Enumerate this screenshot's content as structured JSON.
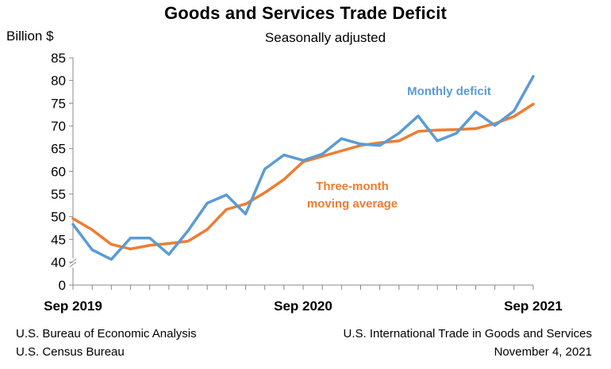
{
  "chart_data": {
    "type": "line",
    "title": "Goods and Services Trade Deficit",
    "subtitle": "Seasonally adjusted",
    "ylabel": "Billion $",
    "ylim": [
      40,
      85
    ],
    "y_ticks": [
      "85",
      "80",
      "75",
      "70",
      "65",
      "60",
      "55",
      "50",
      "45",
      "40",
      "0"
    ],
    "y_axis_break": true,
    "x_tick_labels": [
      "Sep 2019",
      "Sep 2020",
      "Sep 2021"
    ],
    "x": [
      "Sep 2019",
      "Oct 2019",
      "Nov 2019",
      "Dec 2019",
      "Jan 2020",
      "Feb 2020",
      "Mar 2020",
      "Apr 2020",
      "May 2020",
      "Jun 2020",
      "Jul 2020",
      "Aug 2020",
      "Sep 2020",
      "Oct 2020",
      "Nov 2020",
      "Dec 2020",
      "Jan 2021",
      "Feb 2021",
      "Mar 2021",
      "Apr 2021",
      "May 2021",
      "Jun 2021",
      "Jul 2021",
      "Aug 2021",
      "Sep 2021"
    ],
    "grid": false,
    "series": [
      {
        "name": "Monthly deficit",
        "color": "#5b9bd5",
        "values": [
          48.3,
          42.7,
          40.6,
          45.3,
          45.3,
          41.7,
          46.9,
          53.0,
          54.8,
          50.6,
          60.5,
          63.6,
          62.4,
          63.8,
          67.2,
          66.0,
          65.7,
          68.4,
          72.2,
          66.7,
          68.4,
          73.1,
          70.1,
          73.3,
          80.9
        ]
      },
      {
        "name": "Three-month moving average",
        "color": "#ed7d31",
        "values": [
          49.6,
          47.1,
          43.9,
          42.9,
          43.7,
          44.1,
          44.6,
          47.2,
          51.6,
          52.8,
          55.3,
          58.2,
          62.1,
          63.3,
          64.5,
          65.7,
          66.3,
          66.7,
          68.8,
          69.1,
          69.2,
          69.4,
          70.5,
          72.1,
          74.8
        ]
      }
    ],
    "annotations": [
      {
        "series": "Monthly deficit",
        "text": "Monthly deficit"
      },
      {
        "series": "Three-month moving average",
        "lines": [
          "Three-month",
          "moving average"
        ]
      }
    ]
  },
  "footer": {
    "source_line1": "U.S. Bureau of Economic Analysis",
    "source_line2": "U.S. Census Bureau",
    "release_line1": "U.S. International Trade in Goods and Services",
    "release_line2": "November 4, 2021"
  }
}
